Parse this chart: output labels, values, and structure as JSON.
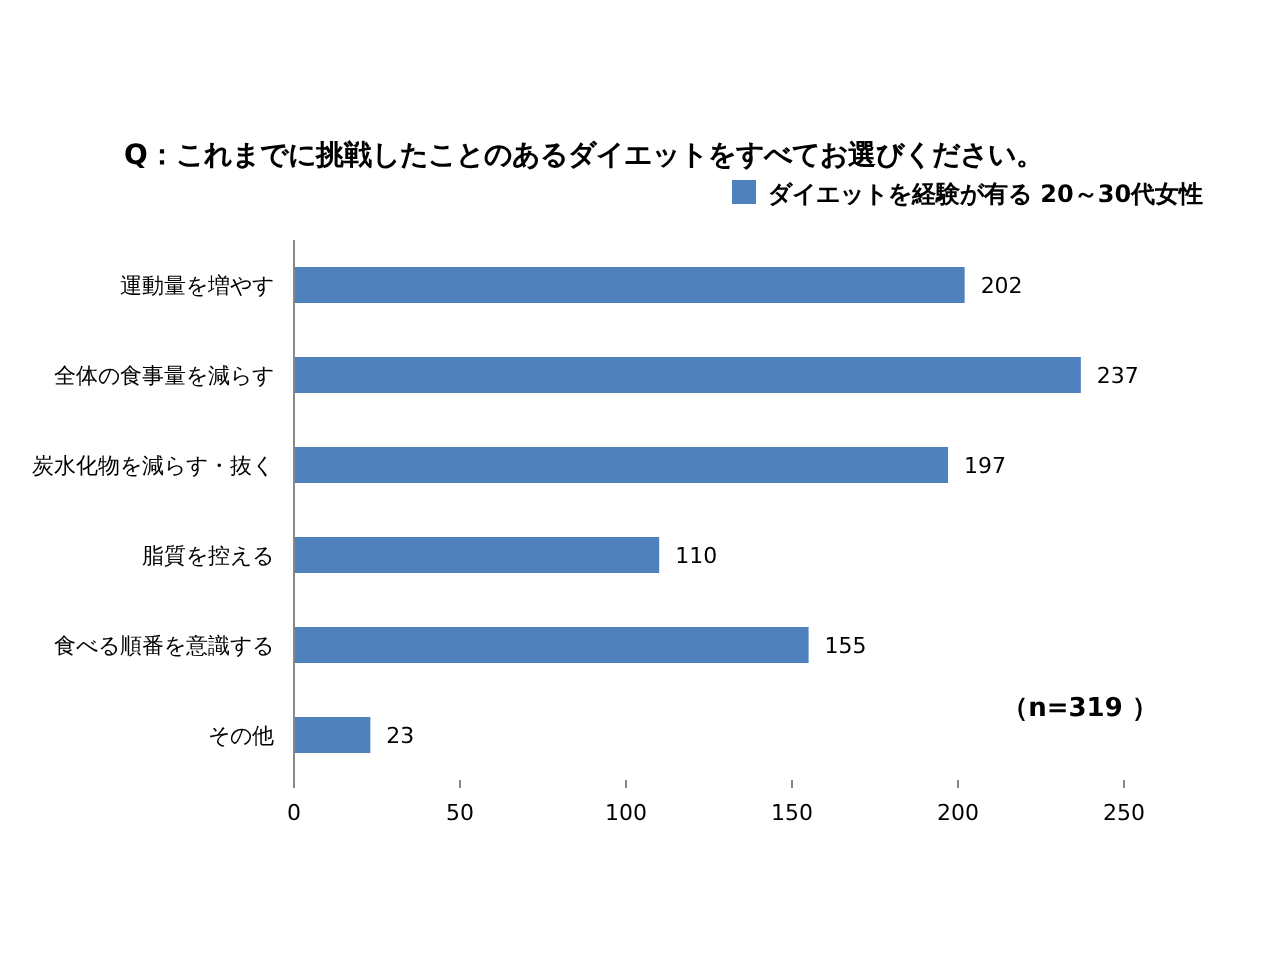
{
  "chart_data": {
    "type": "bar",
    "orientation": "horizontal",
    "title": "Q：これまでに挑戦したことのあるダイエットをすべてお選びください。",
    "categories": [
      "運動量を増やす",
      "全体の食事量を減らす",
      "炭水化物を減らす・抜く",
      "脂質を控える",
      "食べる順番を意識する",
      "その他"
    ],
    "series": [
      {
        "name": "ダイエットを経験が有る 20～30代女性",
        "color": "#4f81bd",
        "values": [
          202,
          237,
          197,
          110,
          155,
          23
        ]
      }
    ],
    "xlim": [
      0,
      250
    ],
    "xticks": [
      0,
      50,
      100,
      150,
      200,
      250
    ],
    "data_labels": true,
    "legend": "top right",
    "grid": false,
    "annotations": [
      "（n=319 ）"
    ]
  }
}
